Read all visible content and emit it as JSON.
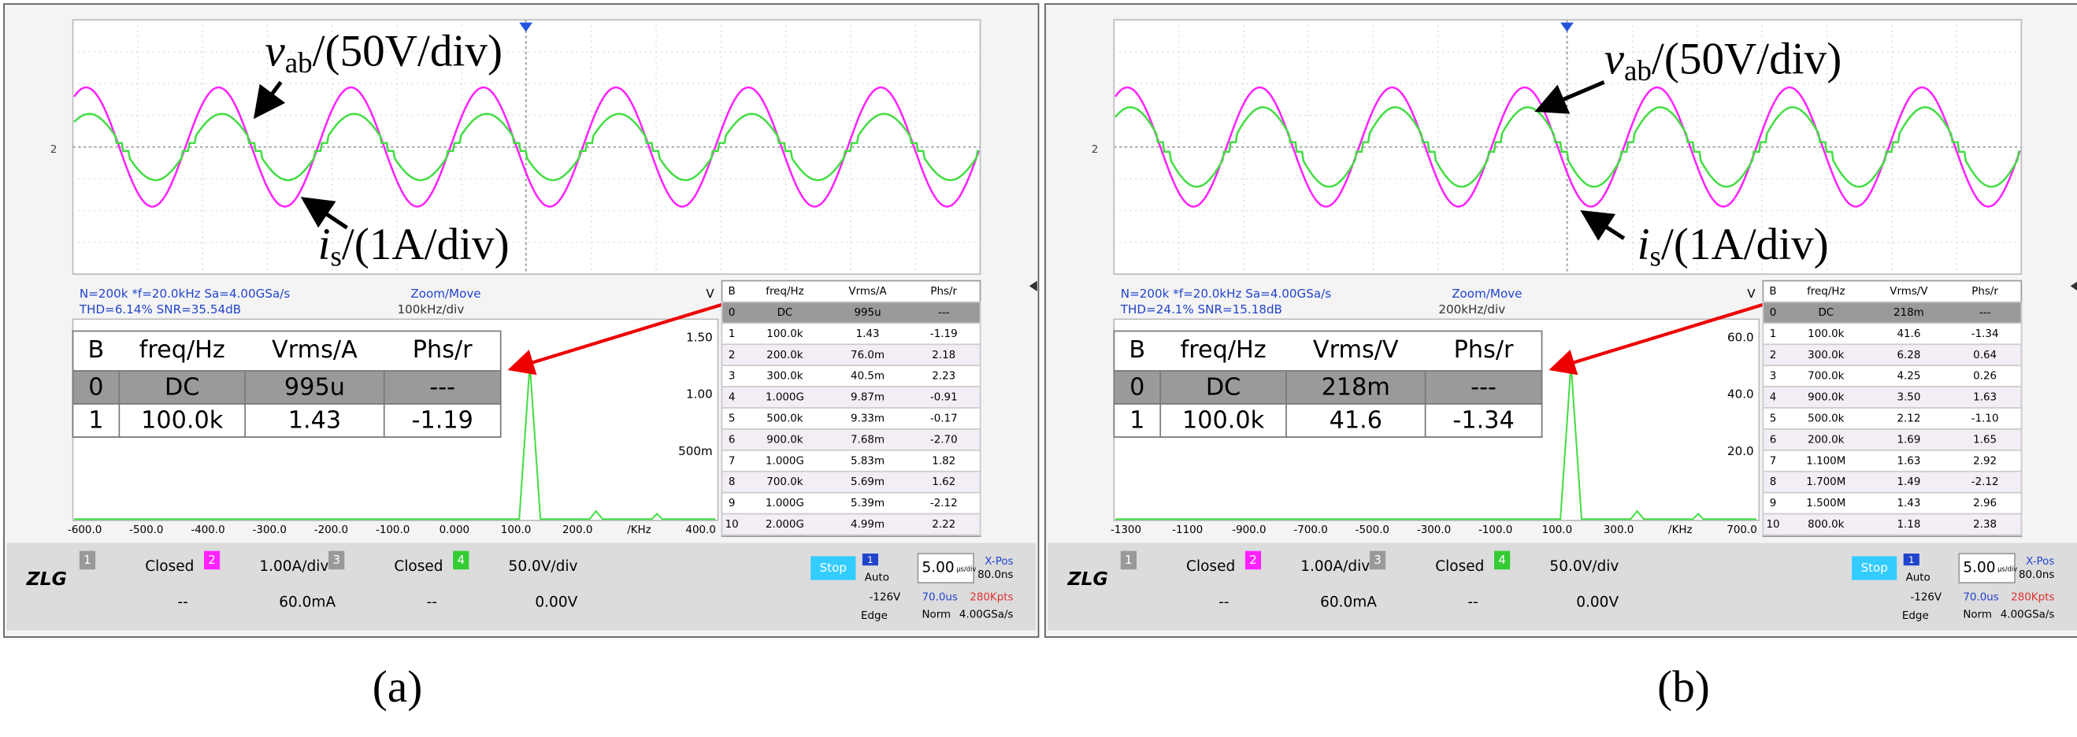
{
  "panels": [
    {
      "label": "(a)",
      "voltage_annotation": {
        "symbol": "v",
        "subscript": "ab",
        "text": "/(50V/div)"
      },
      "current_annotation": {
        "symbol": "i",
        "subscript": "s",
        "text": "/(1A/div)"
      },
      "trace_marker": "2",
      "info": {
        "line1": "N=200k  *f=20.0kHz  Sa=4.00GSa/s",
        "line2": "THD=6.14%  SNR=35.54dB",
        "zoom": "Zoom/Move",
        "scale": "100kHz/div"
      },
      "fft": {
        "unit": "V",
        "ylabels": [
          "1.50",
          "1.00",
          "500m"
        ],
        "xlabels": [
          "-600.0",
          "-500.0",
          "-400.0",
          "-300.0",
          "-200.0",
          "-100.0",
          "0.000",
          "100.0",
          "200.0",
          "/KHz",
          "400.0"
        ]
      },
      "zoom_table": {
        "header": [
          "B",
          "freq/Hz",
          "Vrms/A",
          "Phs/r"
        ],
        "rows": [
          [
            "0",
            "DC",
            "995u",
            "---"
          ],
          [
            "1",
            "100.0k",
            "1.43",
            "-1.19"
          ]
        ]
      },
      "side_table": {
        "header": [
          "B",
          "freq/Hz",
          "Vrms/A",
          "Phs/r"
        ],
        "rows": [
          [
            "0",
            "DC",
            "995u",
            "---"
          ],
          [
            "1",
            "100.0k",
            "1.43",
            "-1.19"
          ],
          [
            "2",
            "200.0k",
            "76.0m",
            "2.18"
          ],
          [
            "3",
            "300.0k",
            "40.5m",
            "2.23"
          ],
          [
            "4",
            "1.000G",
            "9.87m",
            "-0.91"
          ],
          [
            "5",
            "500.0k",
            "9.33m",
            "-0.17"
          ],
          [
            "6",
            "900.0k",
            "7.68m",
            "-2.70"
          ],
          [
            "7",
            "1.000G",
            "5.83m",
            "1.82"
          ],
          [
            "8",
            "700.0k",
            "5.69m",
            "1.62"
          ],
          [
            "9",
            "1.000G",
            "5.39m",
            "-2.12"
          ],
          [
            "10",
            "2.000G",
            "4.99m",
            "2.22"
          ]
        ]
      },
      "status": {
        "logo": "ZLG",
        "channels": [
          {
            "number": "1",
            "scale": "Closed",
            "offset": "--"
          },
          {
            "number": "2",
            "scale": "1.00A/div",
            "offset": "60.0mA"
          },
          {
            "number": "3",
            "scale": "Closed",
            "offset": "--"
          },
          {
            "number": "4",
            "scale": "50.0V/div",
            "offset": "0.00V"
          }
        ],
        "state": "Stop",
        "source": "1",
        "mode": "Auto",
        "level": "-126V",
        "trigger_type": "Edge",
        "timebase": "5.00",
        "timebase_unit": "μs/div",
        "xpos_label": "X-Pos",
        "xpos": "80.0ns",
        "delay": "70.0us",
        "memory": "280Kpts",
        "acquire": "Norm",
        "sample_rate": "4.00GSa/s"
      }
    },
    {
      "label": "(b)",
      "voltage_annotation": {
        "symbol": "v",
        "subscript": "ab",
        "text": "/(50V/div)"
      },
      "current_annotation": {
        "symbol": "i",
        "subscript": "s",
        "text": "/(1A/div)"
      },
      "trace_marker": "2",
      "info": {
        "line1": "N=200k  *f=20.0kHz  Sa=4.00GSa/s",
        "line2": "THD=24.1%  SNR=15.18dB",
        "zoom": "Zoom/Move",
        "scale": "200kHz/div"
      },
      "fft": {
        "unit": "V",
        "ylabels": [
          "60.0",
          "40.0",
          "20.0"
        ],
        "xlabels": [
          "-1300",
          "-1100",
          "-900.0",
          "-700.0",
          "-500.0",
          "-300.0",
          "-100.0",
          "100.0",
          "300.0",
          "/KHz",
          "700.0"
        ]
      },
      "zoom_table": {
        "header": [
          "B",
          "freq/Hz",
          "Vrms/V",
          "Phs/r"
        ],
        "rows": [
          [
            "0",
            "DC",
            "218m",
            "---"
          ],
          [
            "1",
            "100.0k",
            "41.6",
            "-1.34"
          ]
        ]
      },
      "side_table": {
        "header": [
          "B",
          "freq/Hz",
          "Vrms/V",
          "Phs/r"
        ],
        "rows": [
          [
            "0",
            "DC",
            "218m",
            "---"
          ],
          [
            "1",
            "100.0k",
            "41.6",
            "-1.34"
          ],
          [
            "2",
            "300.0k",
            "6.28",
            "0.64"
          ],
          [
            "3",
            "700.0k",
            "4.25",
            "0.26"
          ],
          [
            "4",
            "900.0k",
            "3.50",
            "1.63"
          ],
          [
            "5",
            "500.0k",
            "2.12",
            "-1.10"
          ],
          [
            "6",
            "200.0k",
            "1.69",
            "1.65"
          ],
          [
            "7",
            "1.100M",
            "1.63",
            "2.92"
          ],
          [
            "8",
            "1.700M",
            "1.49",
            "-2.12"
          ],
          [
            "9",
            "1.500M",
            "1.43",
            "2.96"
          ],
          [
            "10",
            "800.0k",
            "1.18",
            "2.38"
          ]
        ]
      },
      "status": {
        "logo": "ZLG",
        "channels": [
          {
            "number": "1",
            "scale": "Closed",
            "offset": "--"
          },
          {
            "number": "2",
            "scale": "1.00A/div",
            "offset": "60.0mA"
          },
          {
            "number": "3",
            "scale": "Closed",
            "offset": "--"
          },
          {
            "number": "4",
            "scale": "50.0V/div",
            "offset": "0.00V"
          }
        ],
        "state": "Stop",
        "source": "1",
        "mode": "Auto",
        "level": "-126V",
        "trigger_type": "Edge",
        "timebase": "5.00",
        "timebase_unit": "μs/div",
        "xpos_label": "X-Pos",
        "xpos": "80.0ns",
        "delay": "70.0us",
        "memory": "280Kpts",
        "acquire": "Norm",
        "sample_rate": "4.00GSa/s"
      }
    }
  ]
}
